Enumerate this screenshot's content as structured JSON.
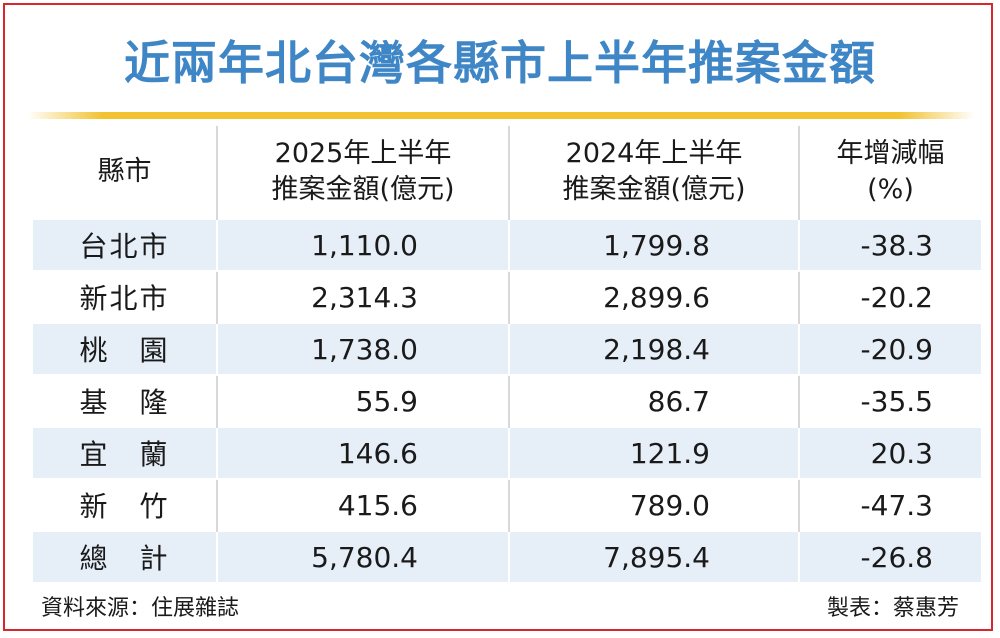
{
  "title": "近兩年北台灣各縣市上半年推案金額",
  "table": {
    "headers": [
      {
        "line1": "縣市",
        "line2": ""
      },
      {
        "line1": "2025年上半年",
        "line2": "推案金額(億元)"
      },
      {
        "line1": "2024年上半年",
        "line2": "推案金額(億元)"
      },
      {
        "line1": "年增減幅",
        "line2": "(%)"
      }
    ],
    "rows": [
      {
        "county": "台北市",
        "y2025": "1,110.0",
        "y2024": "1,799.8",
        "change": "-38.3"
      },
      {
        "county": "新北市",
        "y2025": "2,314.3",
        "y2024": "2,899.6",
        "change": "-20.2"
      },
      {
        "county": "桃　園",
        "y2025": "1,738.0",
        "y2024": "2,198.4",
        "change": "-20.9"
      },
      {
        "county": "基　隆",
        "y2025": "55.9",
        "y2024": "86.7",
        "change": "-35.5"
      },
      {
        "county": "宜　蘭",
        "y2025": "146.6",
        "y2024": "121.9",
        "change": "20.3"
      },
      {
        "county": "新　竹",
        "y2025": "415.6",
        "y2024": "789.0",
        "change": "-47.3"
      },
      {
        "county": "總　計",
        "y2025": "5,780.4",
        "y2024": "7,895.4",
        "change": "-26.8"
      }
    ]
  },
  "footer": {
    "source": "資料來源：住展雜誌",
    "credit": "製表：蔡惠芳"
  },
  "colors": {
    "frame": "#d9262c",
    "title": "#3f86c6",
    "rule": "#f2c230",
    "row_stripe": "#e6eef7"
  }
}
